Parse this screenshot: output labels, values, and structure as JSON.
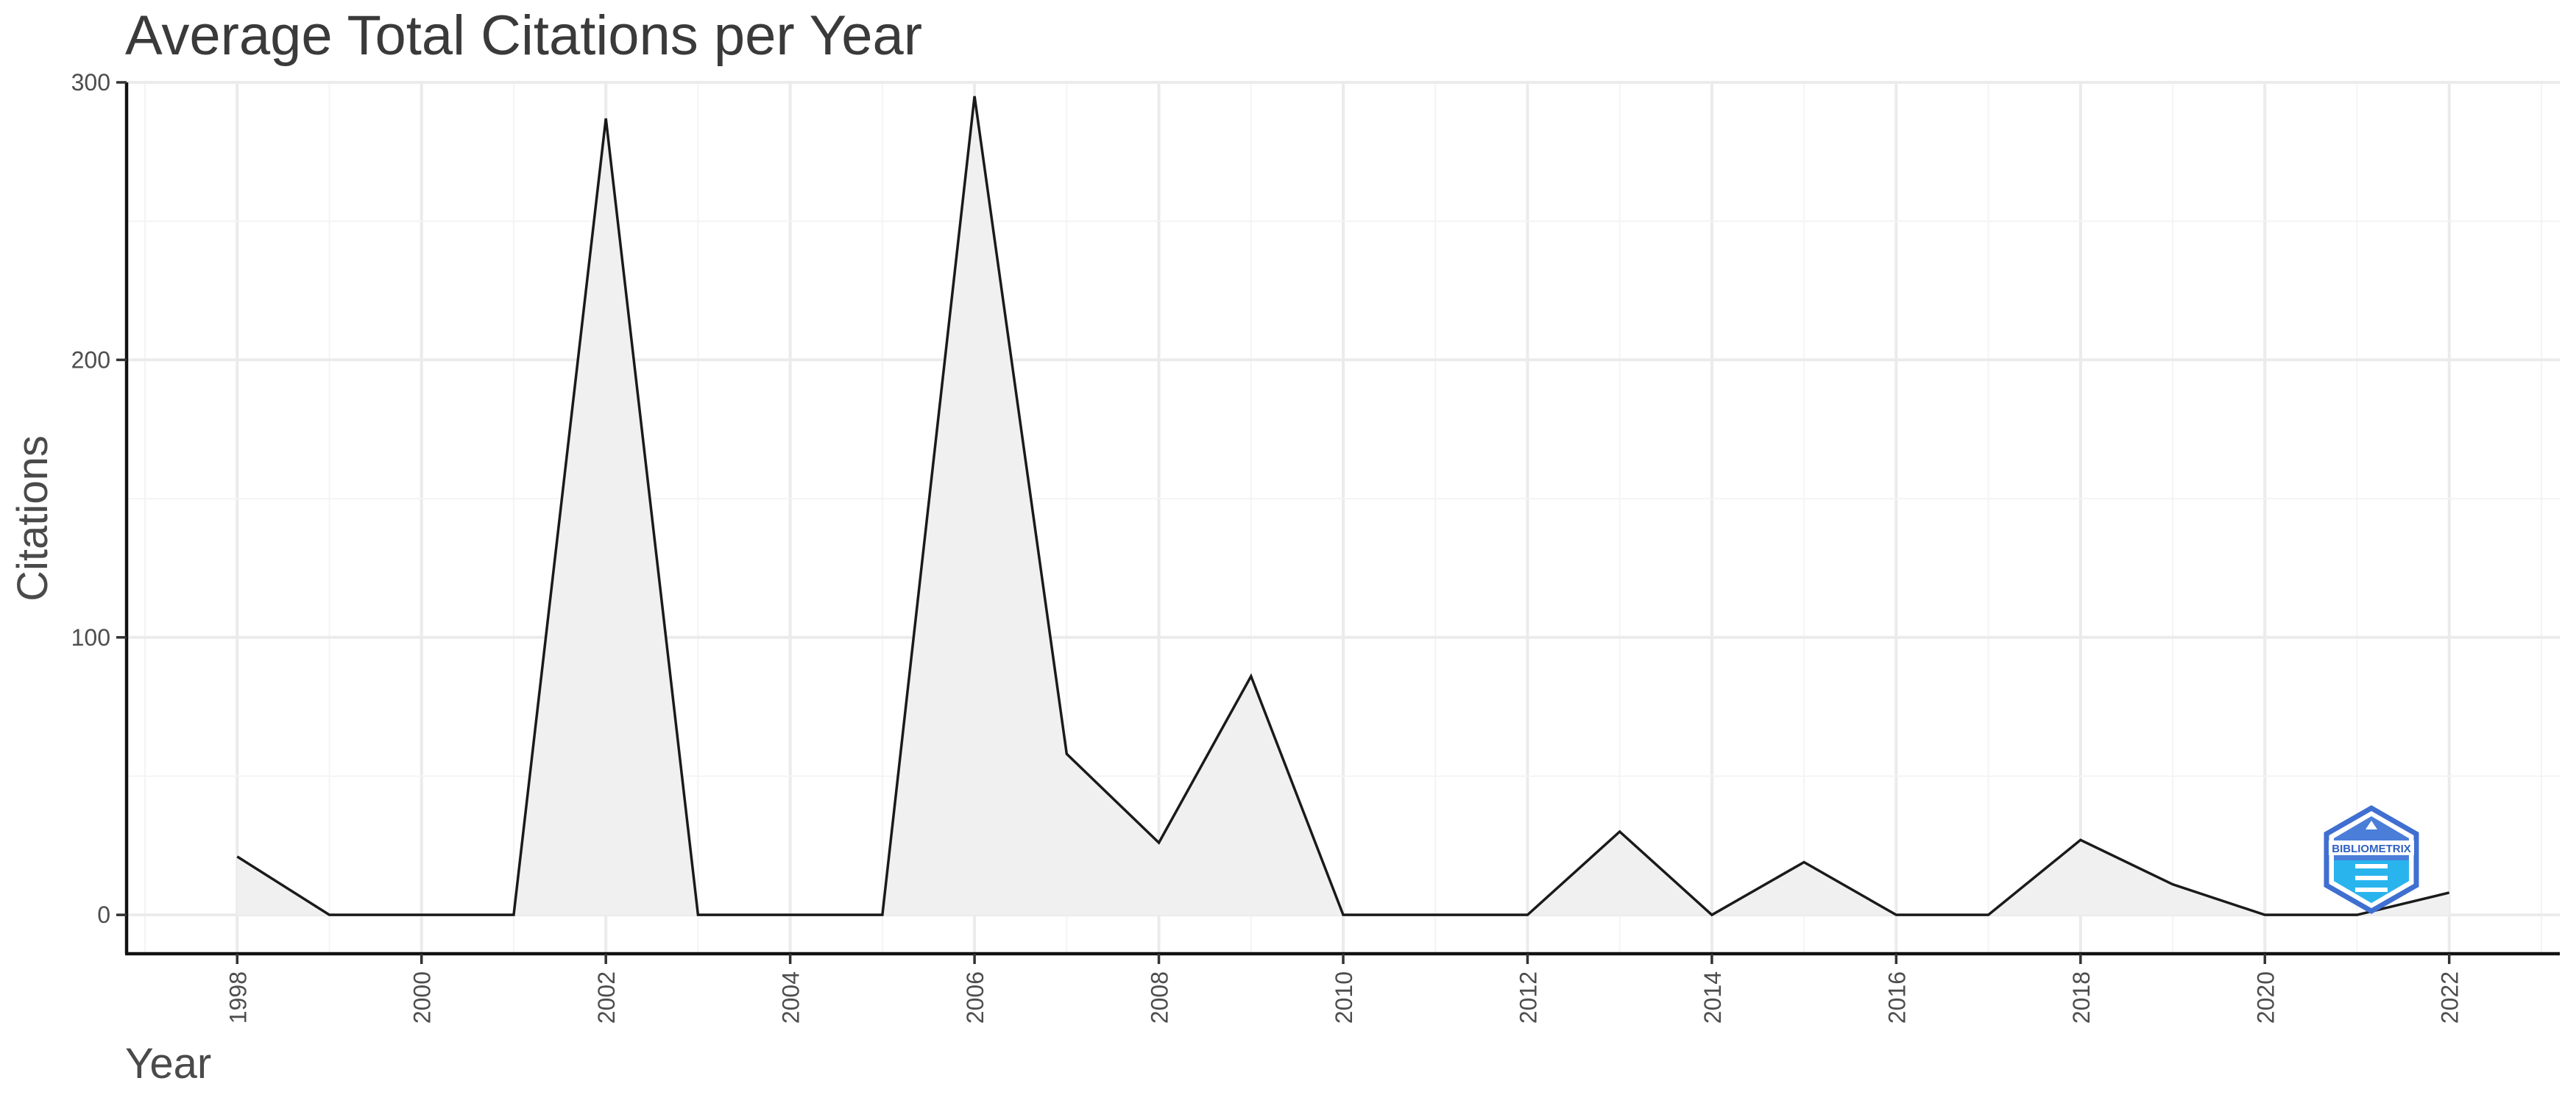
{
  "chart_data": {
    "type": "area",
    "title": "Average Total Citations per Year",
    "xlabel": "Year",
    "ylabel": "Citations",
    "x": [
      1998,
      1999,
      2000,
      2001,
      2002,
      2003,
      2004,
      2005,
      2006,
      2007,
      2008,
      2009,
      2010,
      2011,
      2012,
      2013,
      2014,
      2015,
      2016,
      2017,
      2018,
      2019,
      2020,
      2021,
      2022
    ],
    "values": [
      21,
      0,
      0,
      0,
      287,
      0,
      0,
      0,
      295,
      58,
      26,
      86,
      0,
      0,
      0,
      30,
      0,
      19,
      0,
      0,
      27,
      11,
      0,
      0,
      8
    ],
    "xlim": [
      1996.8,
      2023.2
    ],
    "ylim": [
      -14,
      300
    ],
    "x_ticks": [
      "1998",
      "2000",
      "2002",
      "2004",
      "2006",
      "2008",
      "2010",
      "2012",
      "2014",
      "2016",
      "2018",
      "2020",
      "2022"
    ],
    "y_ticks": [
      "0",
      "100",
      "200",
      "300"
    ],
    "grid": true,
    "colors": {
      "line": "#1a1a1a",
      "area": "#f0f0f0",
      "grid": "#ebebeb"
    },
    "watermark": {
      "icon": "bibliometrix-logo",
      "text": "BIBLIOMETRIX"
    }
  }
}
